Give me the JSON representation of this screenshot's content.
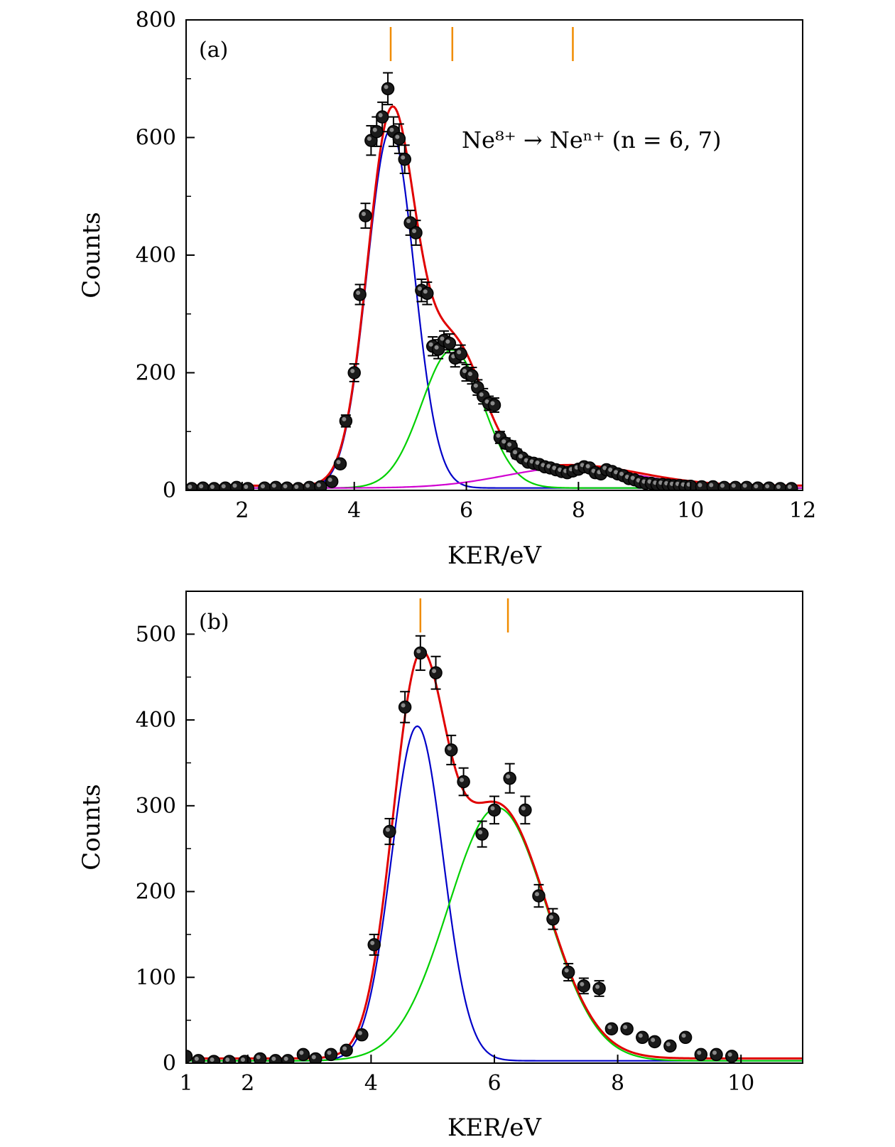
{
  "chart_data": [
    {
      "type": "scatter",
      "panel_label": "(a)",
      "annotation": "Ne⁸⁺ → Neⁿ⁺ (n = 6, 7)",
      "xlabel": "KER/eV",
      "ylabel": "Counts",
      "xlim": [
        1,
        12
      ],
      "ylim": [
        0,
        800
      ],
      "xticks": [
        2,
        4,
        6,
        8,
        10,
        12
      ],
      "yticks": [
        0,
        200,
        400,
        600,
        800
      ],
      "marker_lines_x": [
        4.65,
        5.75,
        7.9
      ],
      "marker_color": "#f08c00",
      "points": {
        "x": [
          1.1,
          1.3,
          1.5,
          1.7,
          1.9,
          2.1,
          2.4,
          2.6,
          2.8,
          3.0,
          3.2,
          3.4,
          3.6,
          3.75,
          3.85,
          4.0,
          4.1,
          4.2,
          4.3,
          4.4,
          4.5,
          4.6,
          4.7,
          4.8,
          4.9,
          5.0,
          5.1,
          5.2,
          5.3,
          5.4,
          5.5,
          5.6,
          5.7,
          5.8,
          5.9,
          6.0,
          6.1,
          6.2,
          6.3,
          6.4,
          6.5,
          6.6,
          6.7,
          6.8,
          6.9,
          7.0,
          7.1,
          7.2,
          7.3,
          7.4,
          7.5,
          7.6,
          7.7,
          7.8,
          7.9,
          8.0,
          8.1,
          8.2,
          8.3,
          8.4,
          8.5,
          8.6,
          8.7,
          8.8,
          8.9,
          9.0,
          9.1,
          9.2,
          9.3,
          9.4,
          9.5,
          9.6,
          9.7,
          9.8,
          9.9,
          10.0,
          10.2,
          10.4,
          10.6,
          10.8,
          11.0,
          11.2,
          11.4,
          11.6,
          11.8
        ],
        "y": [
          3,
          4,
          3,
          4,
          5,
          3,
          4,
          5,
          4,
          3,
          5,
          6,
          15,
          45,
          118,
          200,
          333,
          467,
          595,
          610,
          635,
          683,
          610,
          598,
          563,
          455,
          438,
          340,
          335,
          245,
          240,
          255,
          250,
          225,
          232,
          200,
          195,
          175,
          160,
          148,
          145,
          90,
          80,
          75,
          62,
          55,
          48,
          46,
          44,
          40,
          38,
          35,
          32,
          30,
          33,
          36,
          40,
          38,
          30,
          28,
          35,
          32,
          28,
          25,
          20,
          18,
          14,
          12,
          12,
          10,
          10,
          9,
          8,
          8,
          7,
          7,
          6,
          6,
          5,
          5,
          5,
          4,
          4,
          3,
          3
        ],
        "err": [
          0,
          0,
          0,
          0,
          0,
          0,
          0,
          0,
          0,
          0,
          0,
          0,
          0,
          0,
          10,
          15,
          17,
          21,
          25,
          25,
          25,
          27,
          25,
          25,
          24,
          21,
          21,
          19,
          19,
          16,
          16,
          16,
          16,
          15,
          15,
          14,
          14,
          13,
          13,
          12,
          12,
          10,
          9,
          9,
          8,
          0,
          0,
          0,
          0,
          0,
          0,
          0,
          0,
          0,
          0,
          0,
          0,
          0,
          0,
          0,
          0,
          0,
          0,
          0,
          0,
          0,
          0,
          0,
          0,
          0,
          0,
          0,
          0,
          0,
          0,
          0,
          0,
          0,
          0,
          0,
          0,
          0,
          0,
          0,
          0
        ]
      },
      "series": [
        {
          "color": "#e00000",
          "curve": "total"
        },
        {
          "color": "#0000c8",
          "curve": "gauss",
          "amp": 610,
          "mu": 4.65,
          "sigma": 0.42
        },
        {
          "color": "#00d000",
          "curve": "gauss",
          "amp": 235,
          "mu": 5.75,
          "sigma": 0.55
        },
        {
          "color": "#d000d0",
          "curve": "gauss",
          "amp": 35,
          "mu": 7.9,
          "sigma": 1.2
        }
      ]
    },
    {
      "type": "scatter",
      "panel_label": "(b)",
      "xlabel": "KER/eV",
      "ylabel": "Counts",
      "xlim": [
        1,
        11
      ],
      "ylim": [
        0,
        550
      ],
      "xticks": [
        1,
        2,
        4,
        6,
        8,
        10
      ],
      "yticks": [
        0,
        100,
        200,
        300,
        400,
        500
      ],
      "marker_lines_x": [
        4.8,
        6.22
      ],
      "marker_color": "#f08c00",
      "points": {
        "x": [
          1.0,
          1.2,
          1.45,
          1.7,
          1.95,
          2.2,
          2.45,
          2.65,
          2.9,
          3.1,
          3.35,
          3.6,
          3.85,
          4.05,
          4.3,
          4.55,
          4.8,
          5.05,
          5.3,
          5.5,
          5.8,
          6.0,
          6.25,
          6.5,
          6.72,
          6.95,
          7.2,
          7.45,
          7.7,
          7.9,
          8.15,
          8.4,
          8.6,
          8.85,
          9.1,
          9.35,
          9.6,
          9.85
        ],
        "y": [
          8,
          3,
          2,
          2,
          2,
          5,
          3,
          3,
          10,
          5,
          10,
          15,
          33,
          138,
          270,
          415,
          478,
          455,
          365,
          328,
          267,
          295,
          332,
          295,
          195,
          168,
          106,
          90,
          87,
          40,
          40,
          30,
          25,
          20,
          30,
          10,
          10,
          8
        ],
        "err": [
          0,
          0,
          0,
          0,
          0,
          0,
          0,
          0,
          0,
          0,
          0,
          0,
          0,
          12,
          15,
          18,
          20,
          19,
          17,
          16,
          15,
          16,
          17,
          16,
          13,
          12,
          10,
          9,
          9,
          0,
          0,
          0,
          0,
          0,
          0,
          0,
          0,
          0
        ]
      },
      "series": [
        {
          "color": "#e00000",
          "curve": "total"
        },
        {
          "color": "#0000c8",
          "curve": "gauss",
          "amp": 390,
          "mu": 4.75,
          "sigma": 0.42
        },
        {
          "color": "#00d000",
          "curve": "gauss",
          "amp": 295,
          "mu": 6.05,
          "sigma": 0.8
        }
      ]
    }
  ]
}
